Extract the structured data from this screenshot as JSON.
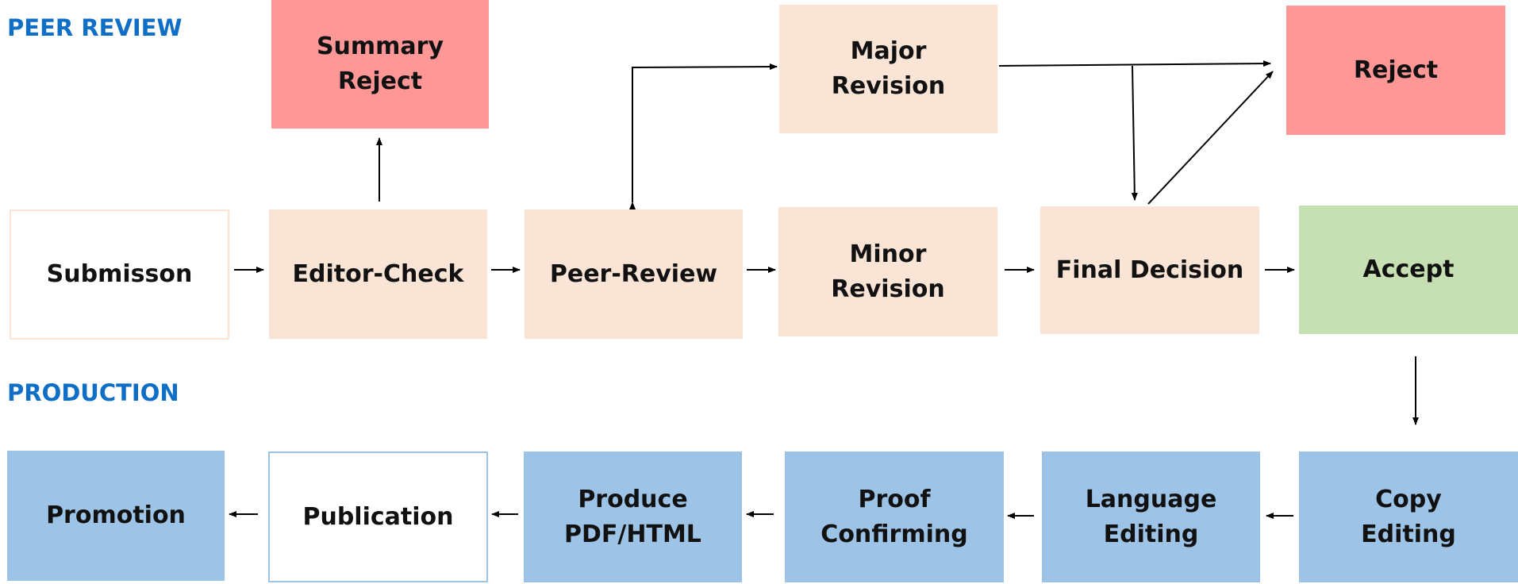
{
  "sections": {
    "peer_review": "PEER REVIEW",
    "production": "PRODUCTION"
  },
  "colors": {
    "section_label": "#0f6fc6",
    "review_step": "#fae4d6",
    "reject": "#ff9797",
    "accept": "#c6e0b4",
    "production_step": "#9dc3e6"
  },
  "nodes": {
    "summary_reject": "Summary\nReject",
    "major_revision": "Major\nRevision",
    "reject": "Reject",
    "submission": "Submisson",
    "editor_check": "Editor-Check",
    "peer_review": "Peer-Review",
    "minor_revision": "Minor\nRevision",
    "final_decision": "Final Decision",
    "accept": "Accept",
    "promotion": "Promotion",
    "publication": "Publication",
    "produce": "Produce\nPDF/HTML",
    "proof": "Proof\nConfirming",
    "language": "Language\nEditing",
    "copy": "Copy\nEditing"
  },
  "edges": [
    [
      "submission",
      "editor_check"
    ],
    [
      "editor_check",
      "peer_review"
    ],
    [
      "peer_review",
      "minor_revision"
    ],
    [
      "minor_revision",
      "final_decision"
    ],
    [
      "final_decision",
      "accept"
    ],
    [
      "editor_check",
      "summary_reject"
    ],
    [
      "peer_review",
      "major_revision"
    ],
    [
      "major_revision",
      "peer_review"
    ],
    [
      "major_revision",
      "reject"
    ],
    [
      "major_revision",
      "final_decision"
    ],
    [
      "final_decision",
      "reject"
    ],
    [
      "accept",
      "copy"
    ],
    [
      "copy",
      "language"
    ],
    [
      "language",
      "proof"
    ],
    [
      "proof",
      "produce"
    ],
    [
      "produce",
      "publication"
    ],
    [
      "publication",
      "promotion"
    ]
  ]
}
